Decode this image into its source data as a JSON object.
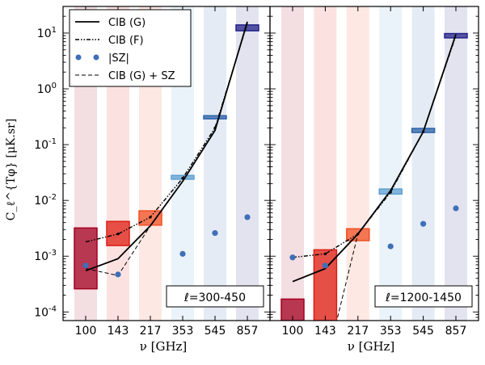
{
  "chart_data": {
    "type": "scatter",
    "y_label": "C_ℓ^{Tφ}  [μK.sr]",
    "y_axis": {
      "scale": "log",
      "ylim": [
        7e-05,
        30
      ],
      "ticks": [
        {
          "value": 0.0001,
          "base": "10",
          "exp": "-4"
        },
        {
          "value": 0.001,
          "base": "10",
          "exp": "-3"
        },
        {
          "value": 0.01,
          "base": "10",
          "exp": "-2"
        },
        {
          "value": 0.1,
          "base": "10",
          "exp": "-1"
        },
        {
          "value": 1,
          "base": "10",
          "exp": "0"
        },
        {
          "value": 10,
          "base": "10",
          "exp": "1"
        }
      ]
    },
    "x_label": "ν  [GHz]",
    "frequencies": [
      "100",
      "143",
      "217",
      "353",
      "545",
      "857"
    ],
    "band_colors": [
      "#a3001f",
      "#dd1d13",
      "#f05023",
      "#5fa0d0",
      "#2b63a8",
      "#23238a"
    ],
    "legend": [
      {
        "key": "cib_g",
        "label": "CIB (G)"
      },
      {
        "key": "cib_f",
        "label": "CIB (F)"
      },
      {
        "key": "sz",
        "label": "|SZ|"
      },
      {
        "key": "cib_sz",
        "label": "CIB (G) + SZ"
      }
    ],
    "panels": [
      {
        "name": "low-ell",
        "ell_label": "ℓ=300-450",
        "measurements": [
          {
            "freq": "100",
            "low": 0.00026,
            "high": 0.0032
          },
          {
            "freq": "143",
            "low": 0.00155,
            "high": 0.0042
          },
          {
            "freq": "217",
            "low": 0.0036,
            "high": 0.0065
          },
          {
            "freq": "353",
            "low": 0.024,
            "high": 0.028
          },
          {
            "freq": "545",
            "low": 0.29,
            "high": 0.33
          },
          {
            "freq": "857",
            "low": 11.0,
            "high": 14.0
          }
        ],
        "cib_g": [
          0.00055,
          0.0009,
          0.0035,
          0.022,
          0.18,
          16
        ],
        "cib_f": [
          0.0018,
          0.0025,
          0.005,
          0.025,
          0.2,
          15
        ],
        "sz": [
          0.00068,
          0.00047,
          0.0,
          0.0011,
          0.0026,
          0.005
        ],
        "cib_sz": [
          0.0006,
          0.00045,
          0.0035,
          0.022,
          0.18,
          16
        ]
      },
      {
        "name": "high-ell",
        "ell_label": "ℓ=1200-1450",
        "measurements": [
          {
            "freq": "100",
            "low": 3e-05,
            "high": 0.00017
          },
          {
            "freq": "143",
            "low": 3e-05,
            "high": 0.0013
          },
          {
            "freq": "217",
            "low": 0.0019,
            "high": 0.0031
          },
          {
            "freq": "353",
            "low": 0.013,
            "high": 0.016
          },
          {
            "freq": "545",
            "low": 0.165,
            "high": 0.195
          },
          {
            "freq": "857",
            "low": 8.2,
            "high": 9.8
          }
        ],
        "cib_g": [
          0.00035,
          0.0006,
          0.0025,
          0.015,
          0.17,
          9.5
        ],
        "cib_f": [
          0.00095,
          0.0011,
          0.0025,
          0.014,
          0.17,
          9.0
        ],
        "sz": [
          0.00095,
          0.00068,
          0.0,
          0.0015,
          0.0038,
          0.0072
        ],
        "cib_sz": [
          0.0,
          1e-05,
          0.0025,
          0.015,
          0.17,
          9.5
        ]
      }
    ]
  }
}
